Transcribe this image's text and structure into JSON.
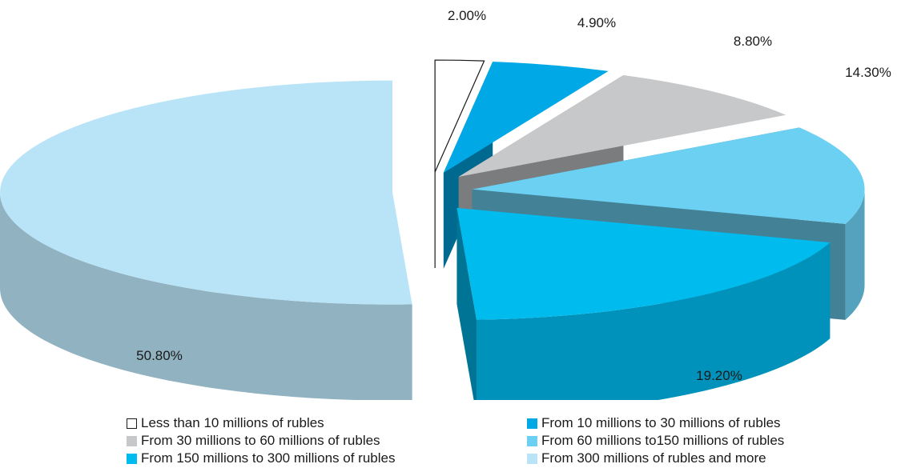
{
  "chart_data": {
    "type": "pie",
    "style": "3d-exploded",
    "slices": [
      {
        "label": "Less than 10 millions of rubles",
        "value": 2.0,
        "display": "2.00%",
        "color": "#ffffff",
        "outline": "#1a1a1a"
      },
      {
        "label": "From 10 millions to 30 millions of rubles",
        "value": 4.9,
        "display": "4.90%",
        "color": "#00a9e6"
      },
      {
        "label": "From 30 millions to 60 millions of rubles",
        "value": 8.8,
        "display": "8.80%",
        "color": "#c6c8ca"
      },
      {
        "label": "From 60 millions to150 millions of rubles",
        "value": 14.3,
        "display": "14.30%",
        "color": "#6cd0f2"
      },
      {
        "label": "From 150 millions to 300 millions of rubles",
        "value": 19.2,
        "display": "19.20%",
        "color": "#00bbee"
      },
      {
        "label": "From 300 millions of rubles and more",
        "value": 50.8,
        "display": "50.80%",
        "color": "#b9e4f7"
      }
    ],
    "legend_position": "bottom"
  }
}
